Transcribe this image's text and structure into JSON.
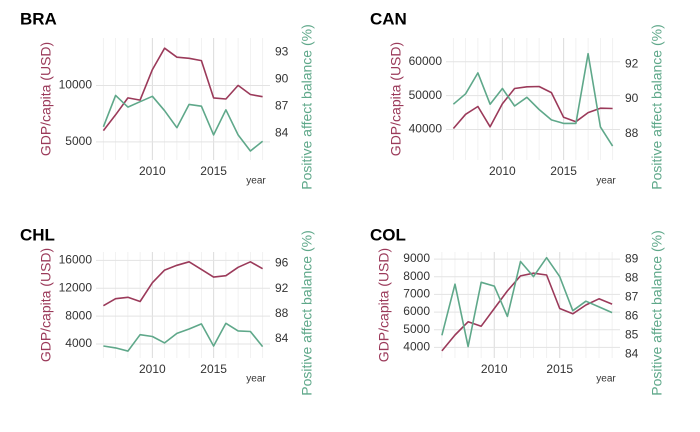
{
  "colors": {
    "gdp": "#9b3a5a",
    "pab": "#5fa88a",
    "grid": "#e3e3e3",
    "text": "#333333"
  },
  "chart_data": [
    {
      "type": "line",
      "title": "BRA",
      "xlabel": "year",
      "ylabel_left": "GDP/capita (USD)",
      "ylabel_right": "Positive affect balance (%)",
      "x": [
        2006,
        2007,
        2008,
        2009,
        2010,
        2011,
        2012,
        2013,
        2014,
        2015,
        2016,
        2017,
        2018,
        2019
      ],
      "xlim": [
        2005.4,
        2019.6
      ],
      "xticks": [
        2010,
        2015
      ],
      "series": [
        {
          "axis": "left",
          "values": [
            6000,
            7400,
            8900,
            8700,
            11400,
            13300,
            12500,
            12400,
            12200,
            8900,
            8800,
            10000,
            9200,
            9000
          ]
        },
        {
          "axis": "right",
          "values": [
            84.7,
            88.2,
            86.9,
            87.5,
            88.1,
            86.5,
            84.6,
            87.2,
            87.0,
            83.8,
            86.6,
            83.8,
            82.0,
            83.1
          ]
        }
      ],
      "ylim_left": [
        3400,
        14200
      ],
      "yticks_left": [
        5000,
        10000
      ],
      "ylim_right": [
        81.0,
        94.6
      ],
      "yticks_right": [
        84,
        87,
        90,
        93
      ]
    },
    {
      "type": "line",
      "title": "CAN",
      "xlabel": "year",
      "ylabel_left": "GDP/capita (USD)",
      "ylabel_right": "Positive affect balance (%)",
      "x": [
        2006,
        2007,
        2008,
        2009,
        2010,
        2011,
        2012,
        2013,
        2014,
        2015,
        2016,
        2017,
        2018,
        2019
      ],
      "xlim": [
        2005.4,
        2019.6
      ],
      "xticks": [
        2010,
        2015
      ],
      "series": [
        {
          "axis": "left",
          "values": [
            40300,
            44500,
            46800,
            40800,
            47600,
            52100,
            52600,
            52700,
            50900,
            43600,
            42300,
            45000,
            46300,
            46200
          ]
        },
        {
          "axis": "right",
          "values": [
            89.7,
            90.3,
            91.5,
            89.7,
            90.6,
            89.6,
            90.1,
            89.4,
            88.8,
            88.6,
            88.6,
            92.6,
            88.4,
            87.3
          ]
        }
      ],
      "ylim_left": [
        31000,
        67000
      ],
      "yticks_left": [
        40000,
        50000,
        60000
      ],
      "ylim_right": [
        86.5,
        93.5
      ],
      "yticks_right": [
        88,
        90,
        92
      ]
    },
    {
      "type": "line",
      "title": "CHL",
      "xlabel": "year",
      "ylabel_left": "GDP/capita (USD)",
      "ylabel_right": "Positive affect balance (%)",
      "x": [
        2006,
        2007,
        2008,
        2009,
        2010,
        2011,
        2012,
        2013,
        2014,
        2015,
        2016,
        2017,
        2018,
        2019
      ],
      "xlim": [
        2005.4,
        2019.6
      ],
      "xticks": [
        2010,
        2015
      ],
      "series": [
        {
          "axis": "left",
          "values": [
            9500,
            10500,
            10700,
            10100,
            12800,
            14600,
            15300,
            15800,
            14700,
            13600,
            13800,
            15000,
            15800,
            14800
          ]
        },
        {
          "axis": "right",
          "values": [
            82.9,
            82.6,
            82.1,
            84.7,
            84.4,
            83.4,
            84.9,
            85.6,
            86.4,
            82.9,
            86.5,
            85.3,
            85.2,
            82.8
          ]
        }
      ],
      "ylim_left": [
        2000,
        17200
      ],
      "yticks_left": [
        4000,
        8000,
        12000,
        16000
      ],
      "ylim_right": [
        81.0,
        97.8
      ],
      "yticks_right": [
        84,
        88,
        92,
        96
      ]
    },
    {
      "type": "line",
      "title": "COL",
      "xlabel": "year",
      "ylabel_left": "GDP/capita (USD)",
      "ylabel_right": "Positive affect balance (%)",
      "x": [
        2006,
        2007,
        2008,
        2009,
        2010,
        2011,
        2012,
        2013,
        2014,
        2015,
        2016,
        2017,
        2018,
        2019
      ],
      "xlim": [
        2005.4,
        2019.6
      ],
      "xticks": [
        2010,
        2015
      ],
      "series": [
        {
          "axis": "left",
          "values": [
            3800,
            4700,
            5450,
            5200,
            6200,
            7200,
            8050,
            8200,
            8100,
            6200,
            5900,
            6400,
            6750,
            6450
          ]
        },
        {
          "axis": "right",
          "values": [
            85.0,
            87.7,
            84.4,
            87.8,
            87.6,
            86.0,
            88.9,
            88.1,
            89.1,
            88.1,
            86.3,
            86.8,
            86.5,
            86.2
          ]
        }
      ],
      "ylim_left": [
        3400,
        9400
      ],
      "yticks_left": [
        4000,
        5000,
        6000,
        7000,
        8000,
        9000
      ],
      "ylim_right": [
        83.8,
        89.4
      ],
      "yticks_right": [
        84,
        85,
        86,
        87,
        88,
        89
      ]
    }
  ]
}
